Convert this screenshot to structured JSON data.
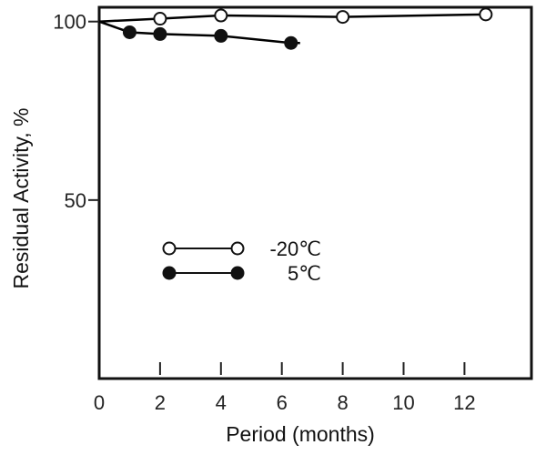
{
  "chart_data": {
    "type": "line",
    "xlabel": "Period (months)",
    "ylabel": "Residual Activity, %",
    "x_ticks": [
      0,
      2,
      4,
      6,
      8,
      10,
      12
    ],
    "y_ticks": [
      50,
      100
    ],
    "xlim": [
      0,
      14.2
    ],
    "ylim": [
      0,
      104
    ],
    "grid": false,
    "legend_position": "center-left",
    "series": [
      {
        "name": "-20℃",
        "marker": "open-circle",
        "color": "#000000",
        "x": [
          0,
          2,
          4,
          8,
          12.7
        ],
        "y": [
          100,
          100.8,
          101.7,
          101.3,
          102
        ]
      },
      {
        "name": "5℃",
        "marker": "filled-circle",
        "color": "#000000",
        "x": [
          0,
          1,
          2,
          4,
          6.3
        ],
        "y": [
          100,
          97,
          96.5,
          96,
          94
        ],
        "line_end_x": 6.6
      }
    ]
  }
}
